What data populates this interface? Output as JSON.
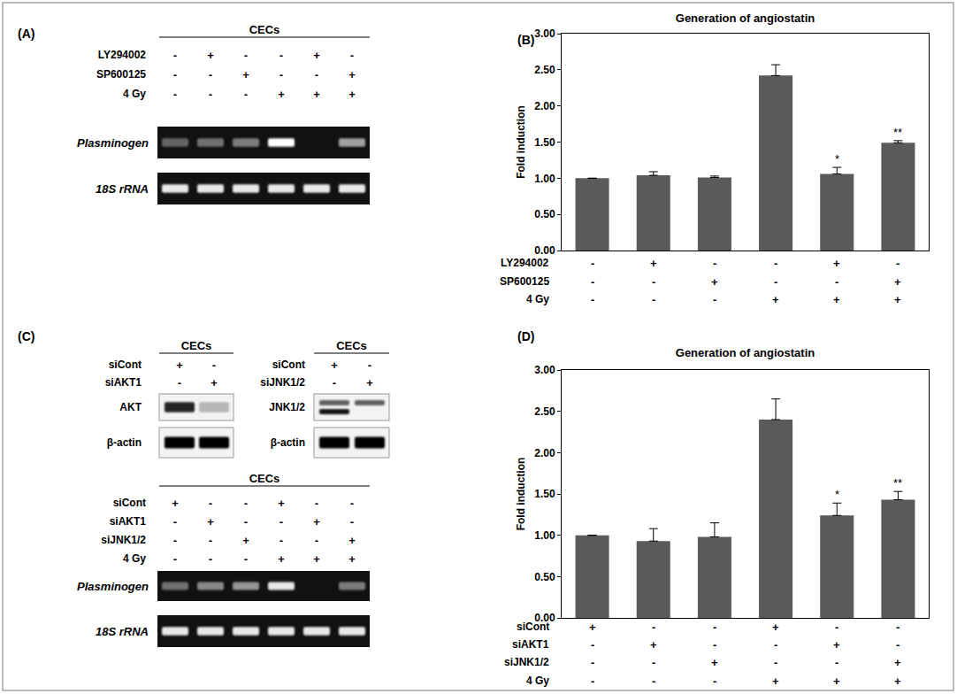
{
  "panels": {
    "A": {
      "label": "(A)",
      "header": "CECs",
      "conditions": [
        {
          "name": "LY294002",
          "signs": [
            "-",
            "+",
            "-",
            "-",
            "+",
            "-"
          ]
        },
        {
          "name": "SP600125",
          "signs": [
            "-",
            "-",
            "+",
            "-",
            "-",
            "+"
          ]
        },
        {
          "name": "4 Gy",
          "signs": [
            "-",
            "-",
            "-",
            "+",
            "+",
            "+"
          ]
        }
      ],
      "gels": [
        {
          "label": "Plasminogen",
          "bands": [
            [
              0.35,
              0.4,
              0.45,
              1.0,
              0.0,
              0.6
            ]
          ]
        },
        {
          "label": "18S rRNA",
          "bands": [
            [
              0.9,
              0.9,
              0.9,
              0.9,
              0.9,
              0.9
            ]
          ]
        }
      ]
    },
    "C": {
      "label": "(C)",
      "blots": [
        {
          "header": "CECs",
          "conditions": [
            {
              "name": "siCont",
              "signs": [
                "+",
                "-"
              ]
            },
            {
              "name": "siAKT1",
              "signs": [
                "-",
                "+"
              ]
            }
          ],
          "rows": [
            {
              "label": "AKT",
              "bands": [
                [
                  0.85,
                  0.25
                ]
              ]
            },
            {
              "label": "β-actin",
              "bands": [
                [
                  1.0,
                  1.0
                ]
              ]
            }
          ]
        },
        {
          "header": "CECs",
          "conditions": [
            {
              "name": "siCont",
              "signs": [
                "+",
                "-"
              ]
            },
            {
              "name": "siJNK1/2",
              "signs": [
                "-",
                "+"
              ]
            }
          ],
          "rows": [
            {
              "label": "JNK1/2",
              "bands": [
                [
                  0.6,
                  0.6
                ],
                [
                  0.9,
                  0.0
                ]
              ]
            },
            {
              "label": "β-actin",
              "bands": [
                [
                  1.0,
                  1.0
                ]
              ]
            }
          ]
        }
      ],
      "lower": {
        "header": "CECs",
        "conditions": [
          {
            "name": "siCont",
            "signs": [
              "+",
              "-",
              "-",
              "+",
              "-",
              "-"
            ]
          },
          {
            "name": "siAKT1",
            "signs": [
              "-",
              "+",
              "-",
              "-",
              "+",
              "-"
            ]
          },
          {
            "name": "siJNK1/2",
            "signs": [
              "-",
              "-",
              "+",
              "-",
              "-",
              "+"
            ]
          },
          {
            "name": "4 Gy",
            "signs": [
              "-",
              "-",
              "-",
              "+",
              "+",
              "+"
            ]
          }
        ],
        "gels": [
          {
            "label": "Plasminogen",
            "bands": [
              [
                0.4,
                0.5,
                0.55,
                0.9,
                0.0,
                0.45
              ]
            ]
          },
          {
            "label": "18S rRNA",
            "bands": [
              [
                0.9,
                0.9,
                0.9,
                0.9,
                0.9,
                0.9
              ]
            ]
          }
        ]
      }
    }
  },
  "chart_data": [
    {
      "panel_label": "(B)",
      "type": "bar",
      "title": "Generation of angiostatin",
      "y_label": "Fold induction",
      "categories": [
        null,
        null,
        null,
        null,
        null,
        null
      ],
      "values": [
        1.0,
        1.04,
        1.01,
        2.42,
        1.06,
        1.49
      ],
      "errors": [
        0.0,
        0.05,
        0.02,
        0.15,
        0.09,
        0.03
      ],
      "significance": [
        null,
        null,
        null,
        null,
        "*",
        "**"
      ],
      "conditions": [
        {
          "name": "LY294002",
          "signs": [
            "-",
            "+",
            "-",
            "-",
            "+",
            "-"
          ]
        },
        {
          "name": "SP600125",
          "signs": [
            "-",
            "-",
            "+",
            "-",
            "-",
            "+"
          ]
        },
        {
          "name": "4 Gy",
          "signs": [
            "-",
            "-",
            "-",
            "+",
            "+",
            "+"
          ]
        }
      ],
      "color": "#5a5a5a",
      "ylim": [
        0,
        3
      ],
      "yticks": [
        {
          "value": 0,
          "label": "0.00"
        },
        {
          "value": 0.5,
          "label": "0.50"
        },
        {
          "value": 1,
          "label": "1.00"
        },
        {
          "value": 1.5,
          "label": "1.50"
        },
        {
          "value": 2,
          "label": "2.00"
        },
        {
          "value": 2.5,
          "label": "2.50"
        },
        {
          "value": 3,
          "label": "3.00"
        }
      ],
      "grid": false,
      "tick_labels": "y"
    },
    {
      "panel_label": "(D)",
      "type": "bar",
      "title": "Generation of angiostatin",
      "y_label": "Fold induction",
      "categories": [
        null,
        null,
        null,
        null,
        null,
        null
      ],
      "values": [
        1.0,
        0.93,
        0.98,
        2.4,
        1.24,
        1.43
      ],
      "errors": [
        0.0,
        0.15,
        0.17,
        0.25,
        0.15,
        0.1
      ],
      "significance": [
        null,
        null,
        null,
        null,
        "*",
        "**"
      ],
      "conditions": [
        {
          "name": "siCont",
          "signs": [
            "+",
            "-",
            "-",
            "+",
            "-",
            "-"
          ]
        },
        {
          "name": "siAKT1",
          "signs": [
            "-",
            "+",
            "-",
            "-",
            "+",
            "-"
          ]
        },
        {
          "name": "siJNK1/2",
          "signs": [
            "-",
            "-",
            "+",
            "-",
            "-",
            "+"
          ]
        },
        {
          "name": "4 Gy",
          "signs": [
            "-",
            "-",
            "-",
            "+",
            "+",
            "+"
          ]
        }
      ],
      "color": "#5a5a5a",
      "ylim": [
        0,
        3
      ],
      "yticks": [
        {
          "value": 0,
          "label": "0.00"
        },
        {
          "value": 0.5,
          "label": "0.50"
        },
        {
          "value": 1,
          "label": "1.00"
        },
        {
          "value": 1.5,
          "label": "1.50"
        },
        {
          "value": 2,
          "label": "2.00"
        },
        {
          "value": 2.5,
          "label": "2.50"
        },
        {
          "value": 3,
          "label": "3.00"
        }
      ],
      "grid": false,
      "tick_labels": "y"
    }
  ]
}
